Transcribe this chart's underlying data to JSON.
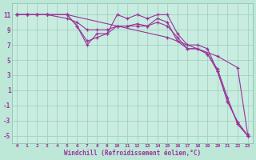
{
  "background_color": "#bbeebb",
  "plot_bg": "#cceedd",
  "grid_color": "#aaccbb",
  "line_color": "#993399",
  "xlabel": "Windchill (Refroidissement éolien,°C)",
  "xlim": [
    -0.5,
    23.5
  ],
  "ylim": [
    -6,
    12.5
  ],
  "yticks": [
    -5,
    -3,
    -1,
    1,
    3,
    5,
    7,
    9,
    11
  ],
  "xticks": [
    0,
    1,
    2,
    3,
    4,
    5,
    6,
    7,
    8,
    9,
    10,
    11,
    12,
    13,
    14,
    15,
    16,
    17,
    18,
    19,
    20,
    21,
    22,
    23
  ],
  "series": [
    {
      "x": [
        0,
        1,
        2,
        3,
        5,
        10,
        15,
        20,
        22,
        23
      ],
      "y": [
        11,
        11,
        11,
        11,
        11,
        9.5,
        8.0,
        5.5,
        4.0,
        -4.8
      ]
    },
    {
      "x": [
        0,
        1,
        2,
        3,
        5,
        6,
        7,
        8,
        9,
        10,
        11,
        12,
        13,
        14,
        15,
        16,
        17,
        18,
        19,
        20,
        21,
        22,
        23
      ],
      "y": [
        11,
        11,
        11,
        11,
        11,
        9.5,
        7.0,
        8.5,
        8.5,
        11,
        10.5,
        11,
        10.5,
        11.0,
        11.0,
        8.5,
        7.0,
        7.0,
        6.5,
        3.5,
        -0.5,
        -3.2,
        -5.0
      ]
    },
    {
      "x": [
        0,
        1,
        2,
        3,
        5,
        6,
        7,
        8,
        9,
        10,
        11,
        12,
        13,
        14,
        15,
        16,
        17,
        18,
        19,
        20,
        21,
        22,
        23
      ],
      "y": [
        11,
        11,
        11,
        11,
        11,
        9.5,
        7.5,
        8.0,
        8.5,
        9.5,
        9.5,
        9.5,
        9.5,
        10.5,
        10.0,
        7.5,
        6.5,
        6.5,
        5.8,
        3.5,
        -0.5,
        -3.2,
        -5.0
      ]
    },
    {
      "x": [
        0,
        1,
        2,
        3,
        5,
        6,
        7,
        8,
        9,
        10,
        11,
        12,
        13,
        14,
        15,
        16,
        17,
        18,
        19,
        20,
        21,
        22,
        23
      ],
      "y": [
        11,
        11,
        11,
        11,
        10.5,
        10.0,
        9.0,
        9.0,
        9.0,
        9.5,
        9.5,
        9.8,
        9.5,
        10.0,
        9.5,
        8.0,
        6.5,
        6.5,
        5.8,
        3.8,
        0.0,
        -3.5,
        -5.0
      ]
    }
  ]
}
